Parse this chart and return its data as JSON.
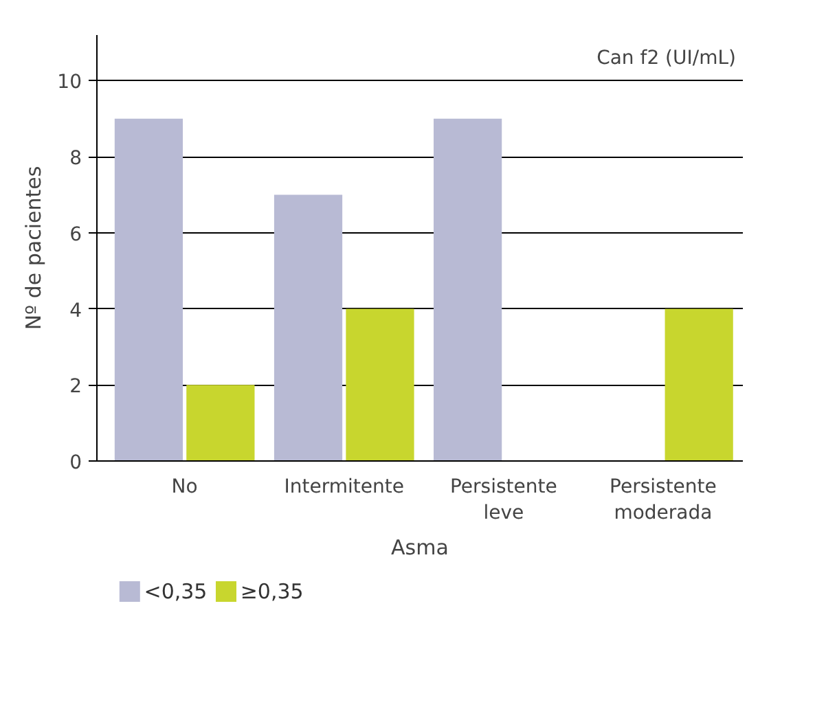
{
  "chart_data": {
    "type": "bar",
    "xlabel": "Asma",
    "ylabel": "Nº de pacientes",
    "categories": [
      "No",
      "Intermitente",
      "Persistente leve",
      "Persistente moderada"
    ],
    "series": [
      {
        "name": "<0,35",
        "color": "#b8bad4",
        "values": [
          9,
          7,
          9,
          0
        ]
      },
      {
        "name": "≥0,35",
        "color": "#c8d62e",
        "values": [
          2,
          4,
          0,
          4
        ]
      }
    ],
    "ylim": [
      0,
      11.2
    ],
    "yticks": [
      0,
      2,
      4,
      6,
      8,
      10
    ],
    "grid": "y",
    "legend": "bottom",
    "annotations": [
      "Can f2 (UI/mL)"
    ]
  }
}
